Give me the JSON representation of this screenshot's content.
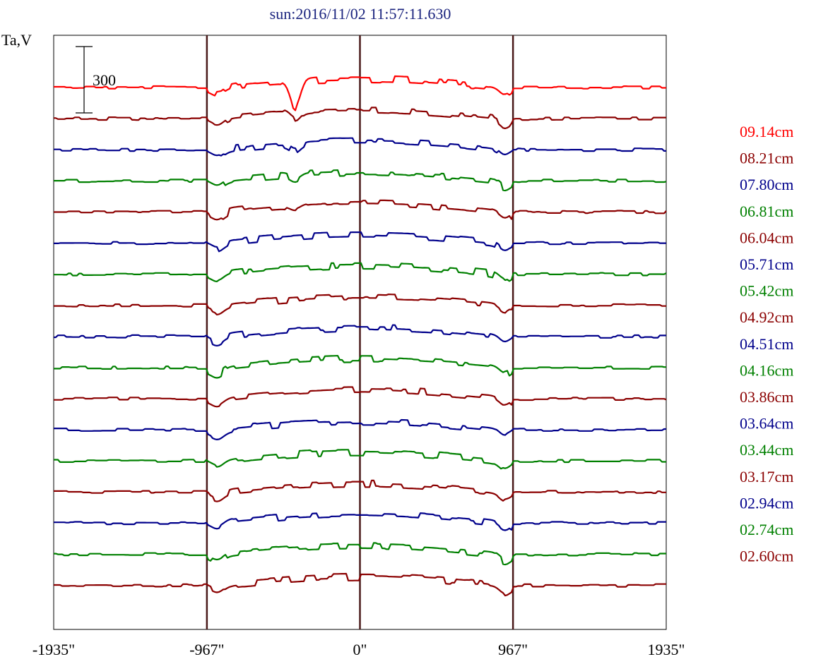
{
  "chart_data": {
    "type": "line",
    "title": "sun:2016/11/02 11:57:11.630",
    "ylabel": "Ta,V",
    "scale_bar_label": "300",
    "xlim": [
      -1935,
      1935
    ],
    "x_ticks": [
      -1935,
      -967,
      0,
      967,
      1935
    ],
    "x_tick_labels": [
      "-1935\"",
      "-967\"",
      "0\"",
      "967\"",
      "1935\""
    ],
    "vertical_markers": [
      -967,
      0,
      967
    ],
    "grid": false,
    "legend_position": "right",
    "series": [
      {
        "name": "09.14cm",
        "color": "#ff0000"
      },
      {
        "name": "08.21cm",
        "color": "#8b0000"
      },
      {
        "name": "07.80cm",
        "color": "#00008b"
      },
      {
        "name": "06.81cm",
        "color": "#008000"
      },
      {
        "name": "06.04cm",
        "color": "#8b0000"
      },
      {
        "name": "05.71cm",
        "color": "#00008b"
      },
      {
        "name": "05.42cm",
        "color": "#008000"
      },
      {
        "name": "04.92cm",
        "color": "#8b0000"
      },
      {
        "name": "04.51cm",
        "color": "#00008b"
      },
      {
        "name": "04.16cm",
        "color": "#008000"
      },
      {
        "name": "03.86cm",
        "color": "#8b0000"
      },
      {
        "name": "03.64cm",
        "color": "#00008b"
      },
      {
        "name": "03.44cm",
        "color": "#008000"
      },
      {
        "name": "03.17cm",
        "color": "#8b0000"
      },
      {
        "name": "02.94cm",
        "color": "#00008b"
      },
      {
        "name": "02.74cm",
        "color": "#008000"
      },
      {
        "name": "02.60cm",
        "color": "#8b0000"
      }
    ]
  }
}
